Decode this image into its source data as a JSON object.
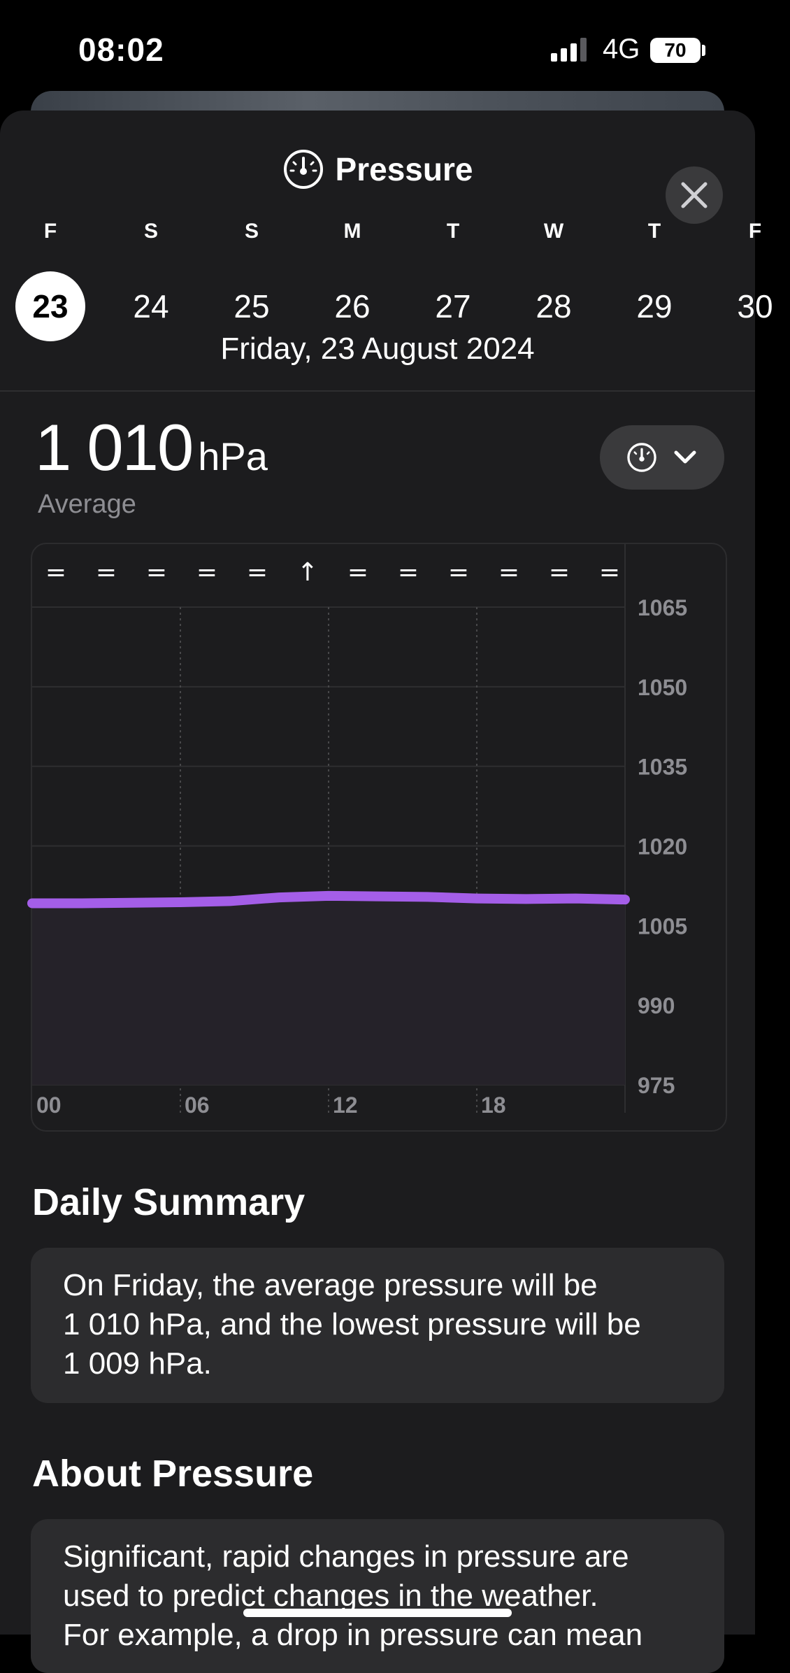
{
  "status": {
    "time": "08:02",
    "network": "4G",
    "battery": "70"
  },
  "header": {
    "title": "Pressure",
    "title_icon": "gauge-icon",
    "close_icon": "close-icon"
  },
  "days": [
    {
      "letter": "F",
      "num": "23",
      "selected": true
    },
    {
      "letter": "S",
      "num": "24"
    },
    {
      "letter": "S",
      "num": "25"
    },
    {
      "letter": "M",
      "num": "26"
    },
    {
      "letter": "T",
      "num": "27"
    },
    {
      "letter": "W",
      "num": "28"
    },
    {
      "letter": "T",
      "num": "29"
    },
    {
      "letter": "F",
      "num": "30"
    }
  ],
  "selected_date": "Friday, 23 August 2024",
  "reading": {
    "value": "1 010",
    "unit": "hPa",
    "label": "Average"
  },
  "metric_switcher": {
    "icon": "gauge-icon",
    "chevron": "chevron-down-icon"
  },
  "chart_data": {
    "type": "area",
    "x_ticks": [
      "00",
      "06",
      "12",
      "18"
    ],
    "y_ticks": [
      1065,
      1050,
      1035,
      1020,
      1005,
      990,
      975
    ],
    "ylim": [
      975,
      1065
    ],
    "trend_symbols": [
      "=",
      "=",
      "=",
      "=",
      "=",
      "↑",
      "=",
      "=",
      "=",
      "=",
      "=",
      "="
    ],
    "series": [
      {
        "color": "#a45ee8",
        "x": [
          0,
          2,
          4,
          6,
          8,
          10,
          12,
          14,
          16,
          18,
          20,
          22,
          24
        ],
        "y": [
          1009.2,
          1009.2,
          1009.3,
          1009.4,
          1009.6,
          1010.3,
          1010.6,
          1010.5,
          1010.4,
          1010.1,
          1010.0,
          1010.1,
          1009.9
        ]
      }
    ],
    "line_color": "#a45ee8",
    "grid": true
  },
  "daily_summary": {
    "heading": "Daily Summary",
    "lines": [
      "On Friday, the average pressure will be",
      "1 010 hPa, and the lowest pressure will be",
      "1 009 hPa."
    ]
  },
  "about": {
    "heading": "About Pressure",
    "lines": [
      "Significant, rapid changes in pressure are",
      "used to predict changes in the weather.",
      "For example, a drop in pressure can mean"
    ]
  }
}
